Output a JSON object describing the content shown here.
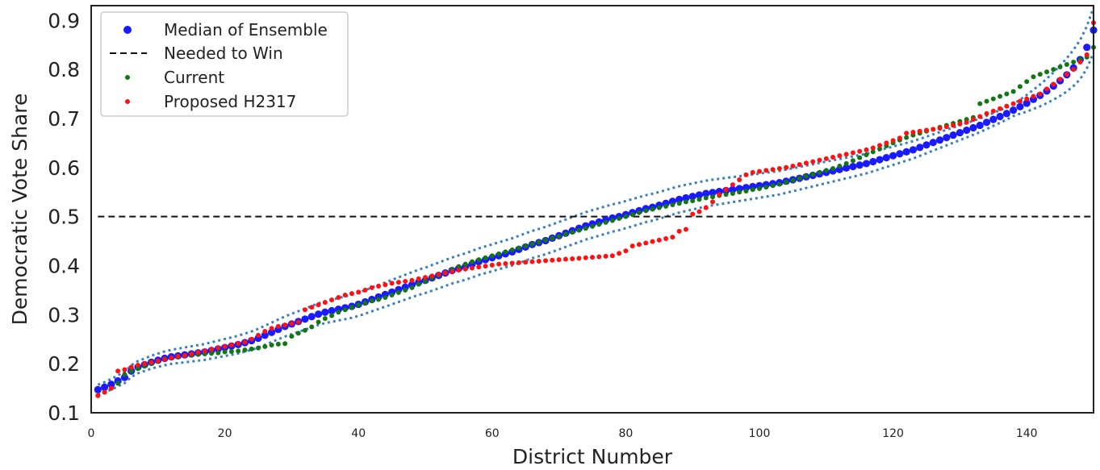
{
  "chart_data": {
    "type": "scatter",
    "xlabel": "District Number",
    "ylabel": "Democratic Vote Share",
    "xlim": [
      0,
      150
    ],
    "ylim": [
      0.1,
      0.93
    ],
    "xticks": [
      0,
      20,
      40,
      60,
      80,
      100,
      120,
      140
    ],
    "yticks": [
      0.1,
      0.2,
      0.3,
      0.4,
      0.5,
      0.6,
      0.7,
      0.8,
      0.9
    ],
    "grid": false,
    "legend_position": "top-left",
    "threshold": 0.5,
    "colors": {
      "median": "#1a1aff",
      "threshold": "#111111",
      "current": "#117711",
      "proposed": "#ff1111",
      "band": "#3a7fc1"
    },
    "series": [
      {
        "name": "Median of Ensemble",
        "style": "large-dot",
        "x_start": 1,
        "values": [
          0.147,
          0.152,
          0.158,
          0.165,
          0.172,
          0.185,
          0.193,
          0.198,
          0.203,
          0.207,
          0.211,
          0.214,
          0.216,
          0.218,
          0.22,
          0.222,
          0.224,
          0.227,
          0.23,
          0.233,
          0.236,
          0.239,
          0.243,
          0.247,
          0.252,
          0.258,
          0.264,
          0.27,
          0.276,
          0.281,
          0.286,
          0.291,
          0.296,
          0.301,
          0.305,
          0.308,
          0.311,
          0.314,
          0.317,
          0.321,
          0.326,
          0.331,
          0.336,
          0.341,
          0.346,
          0.351,
          0.356,
          0.361,
          0.366,
          0.37,
          0.375,
          0.38,
          0.385,
          0.39,
          0.394,
          0.398,
          0.403,
          0.408,
          0.412,
          0.416,
          0.42,
          0.424,
          0.428,
          0.433,
          0.438,
          0.443,
          0.447,
          0.451,
          0.456,
          0.461,
          0.466,
          0.471,
          0.476,
          0.481,
          0.485,
          0.489,
          0.493,
          0.497,
          0.5,
          0.504,
          0.508,
          0.512,
          0.516,
          0.519,
          0.523,
          0.527,
          0.531,
          0.535,
          0.538,
          0.541,
          0.544,
          0.547,
          0.549,
          0.551,
          0.553,
          0.555,
          0.557,
          0.559,
          0.561,
          0.563,
          0.565,
          0.567,
          0.569,
          0.572,
          0.575,
          0.578,
          0.581,
          0.584,
          0.587,
          0.59,
          0.593,
          0.596,
          0.599,
          0.602,
          0.605,
          0.608,
          0.612,
          0.616,
          0.62,
          0.624,
          0.628,
          0.632,
          0.636,
          0.641,
          0.646,
          0.651,
          0.656,
          0.661,
          0.666,
          0.671,
          0.676,
          0.681,
          0.686,
          0.692,
          0.698,
          0.704,
          0.71,
          0.717,
          0.724,
          0.731,
          0.739,
          0.747,
          0.756,
          0.766,
          0.777,
          0.789,
          0.803,
          0.82,
          0.845,
          0.88
        ]
      },
      {
        "name": "Needed to Win",
        "style": "dashed-line",
        "y": 0.5
      },
      {
        "name": "Current",
        "style": "small-dot",
        "x_start": 1,
        "values": [
          0.135,
          0.142,
          0.15,
          0.16,
          0.178,
          0.185,
          0.19,
          0.195,
          0.2,
          0.205,
          0.21,
          0.212,
          0.214,
          0.216,
          0.218,
          0.219,
          0.22,
          0.221,
          0.222,
          0.224,
          0.225,
          0.226,
          0.228,
          0.23,
          0.232,
          0.235,
          0.238,
          0.24,
          0.241,
          0.256,
          0.262,
          0.268,
          0.275,
          0.285,
          0.292,
          0.298,
          0.305,
          0.31,
          0.315,
          0.32,
          0.324,
          0.328,
          0.331,
          0.335,
          0.34,
          0.345,
          0.35,
          0.355,
          0.362,
          0.368,
          0.375,
          0.38,
          0.386,
          0.392,
          0.398,
          0.403,
          0.408,
          0.412,
          0.416,
          0.42,
          0.424,
          0.428,
          0.432,
          0.436,
          0.44,
          0.444,
          0.448,
          0.452,
          0.456,
          0.46,
          0.464,
          0.468,
          0.472,
          0.476,
          0.48,
          0.484,
          0.488,
          0.492,
          0.496,
          0.5,
          0.504,
          0.508,
          0.512,
          0.515,
          0.518,
          0.521,
          0.524,
          0.527,
          0.53,
          0.532,
          0.535,
          0.538,
          0.54,
          0.543,
          0.545,
          0.547,
          0.55,
          0.552,
          0.555,
          0.557,
          0.56,
          0.563,
          0.566,
          0.57,
          0.574,
          0.578,
          0.582,
          0.586,
          0.59,
          0.594,
          0.598,
          0.603,
          0.608,
          0.614,
          0.62,
          0.626,
          0.632,
          0.638,
          0.644,
          0.65,
          0.656,
          0.661,
          0.666,
          0.67,
          0.674,
          0.678,
          0.682,
          0.686,
          0.69,
          0.694,
          0.698,
          0.702,
          0.73,
          0.735,
          0.74,
          0.745,
          0.75,
          0.755,
          0.765,
          0.775,
          0.785,
          0.79,
          0.795,
          0.8,
          0.805,
          0.81,
          0.815,
          0.82,
          0.825,
          0.845
        ]
      },
      {
        "name": "Proposed H2317",
        "style": "small-dot",
        "x_start": 1,
        "values": [
          0.135,
          0.142,
          0.15,
          0.185,
          0.188,
          0.193,
          0.197,
          0.2,
          0.203,
          0.206,
          0.209,
          0.212,
          0.215,
          0.217,
          0.22,
          0.223,
          0.226,
          0.229,
          0.232,
          0.235,
          0.238,
          0.241,
          0.244,
          0.25,
          0.258,
          0.266,
          0.272,
          0.276,
          0.279,
          0.282,
          0.285,
          0.31,
          0.315,
          0.32,
          0.325,
          0.33,
          0.335,
          0.34,
          0.343,
          0.346,
          0.35,
          0.355,
          0.358,
          0.361,
          0.364,
          0.366,
          0.368,
          0.37,
          0.373,
          0.376,
          0.379,
          0.382,
          0.385,
          0.388,
          0.391,
          0.393,
          0.395,
          0.397,
          0.399,
          0.401,
          0.403,
          0.404,
          0.405,
          0.406,
          0.407,
          0.408,
          0.409,
          0.41,
          0.411,
          0.412,
          0.413,
          0.414,
          0.415,
          0.416,
          0.417,
          0.418,
          0.419,
          0.42,
          0.425,
          0.43,
          0.44,
          0.443,
          0.446,
          0.449,
          0.452,
          0.455,
          0.458,
          0.47,
          0.474,
          0.505,
          0.51,
          0.518,
          0.53,
          0.545,
          0.555,
          0.565,
          0.575,
          0.585,
          0.59,
          0.592,
          0.594,
          0.596,
          0.598,
          0.6,
          0.603,
          0.606,
          0.609,
          0.612,
          0.615,
          0.618,
          0.621,
          0.624,
          0.627,
          0.63,
          0.633,
          0.636,
          0.64,
          0.645,
          0.65,
          0.655,
          0.66,
          0.67,
          0.672,
          0.674,
          0.676,
          0.678,
          0.68,
          0.683,
          0.686,
          0.689,
          0.692,
          0.698,
          0.704,
          0.71,
          0.715,
          0.72,
          0.725,
          0.73,
          0.735,
          0.74,
          0.745,
          0.75,
          0.76,
          0.77,
          0.78,
          0.79,
          0.8,
          0.815,
          0.83,
          0.895
        ]
      }
    ]
  }
}
